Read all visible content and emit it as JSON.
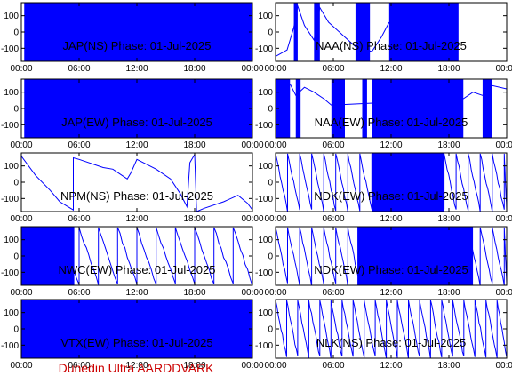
{
  "footer": "Dunedin Ultra AARDDVARK",
  "colors": {
    "trace": "#0000ff",
    "axis": "#000000",
    "footer": "#cc0000",
    "background": "#ffffff"
  },
  "chart_data": [
    {
      "type": "line",
      "title": "JAP(NS) Phase: 01-Jul-2025",
      "x_ticks": [
        "00:00",
        "06:00",
        "12:00",
        "18:00",
        "00:00"
      ],
      "y_ticks": [
        "100",
        "0",
        "-100"
      ],
      "ylim": [
        -180,
        180
      ],
      "xlim": [
        0,
        24
      ],
      "x_unit": "hours",
      "pattern": "dense",
      "dense_segments": [
        [
          0.3,
          24
        ]
      ]
    },
    {
      "type": "line",
      "title": "NAA(NS) Phase: 01-Jul-2025",
      "x_ticks": [
        "00:00",
        "06:00",
        "12:00",
        "18:00",
        "00:00"
      ],
      "y_ticks": [
        "100",
        "0",
        "-100"
      ],
      "ylim": [
        -180,
        180
      ],
      "xlim": [
        0,
        24
      ],
      "x_unit": "hours",
      "pattern": "mixed",
      "dense_segments": [
        [
          1.9,
          2.3
        ],
        [
          4.0,
          4.6
        ],
        [
          8.3,
          9.8
        ],
        [
          11.8,
          19.0
        ]
      ],
      "trend": [
        [
          0,
          -150
        ],
        [
          1.2,
          -110
        ],
        [
          1.9,
          30
        ],
        [
          2.3,
          160
        ],
        [
          3.0,
          40
        ],
        [
          4.0,
          -50
        ],
        [
          4.6,
          150
        ],
        [
          5.5,
          60
        ],
        [
          7.0,
          -20
        ],
        [
          8.3,
          -90
        ],
        [
          10.0,
          -120
        ],
        [
          11.0,
          -30
        ],
        [
          11.8,
          60
        ]
      ]
    },
    {
      "type": "line",
      "title": "JAP(EW) Phase: 01-Jul-2025",
      "x_ticks": [
        "00:00",
        "06:00",
        "12:00",
        "18:00",
        "00:00"
      ],
      "y_ticks": [
        "100",
        "0",
        "-100"
      ],
      "ylim": [
        -180,
        180
      ],
      "xlim": [
        0,
        24
      ],
      "x_unit": "hours",
      "pattern": "dense",
      "dense_segments": [
        [
          0.3,
          24
        ]
      ]
    },
    {
      "type": "line",
      "title": "NAA(EW) Phase: 01-Jul-2025",
      "x_ticks": [
        "00:00",
        "06:00",
        "12:00",
        "18:00",
        "00:00"
      ],
      "y_ticks": [
        "100",
        "0",
        "-100"
      ],
      "ylim": [
        -180,
        180
      ],
      "xlim": [
        0,
        24
      ],
      "x_unit": "hours",
      "pattern": "mixed",
      "dense_segments": [
        [
          0,
          1.5
        ],
        [
          2.1,
          2.6
        ],
        [
          5.8,
          7.2
        ],
        [
          9.0,
          9.5
        ],
        [
          10.0,
          19.5
        ],
        [
          21.5,
          22.5
        ]
      ],
      "trend": [
        [
          1.5,
          150
        ],
        [
          2.1,
          80
        ],
        [
          3.0,
          130
        ],
        [
          4.0,
          100
        ],
        [
          5.0,
          60
        ],
        [
          5.8,
          20
        ],
        [
          19.5,
          60
        ],
        [
          20.5,
          100
        ],
        [
          21.5,
          80
        ],
        [
          22.5,
          140
        ],
        [
          24,
          120
        ]
      ]
    },
    {
      "type": "line",
      "title": "NPM(NS) Phase: 01-Jul-2025",
      "x_ticks": [
        "00:00",
        "06:00",
        "12:00",
        "18:00",
        "00:00"
      ],
      "y_ticks": [
        "100",
        "0",
        "-100"
      ],
      "ylim": [
        -180,
        180
      ],
      "xlim": [
        0,
        24
      ],
      "x_unit": "hours",
      "pattern": "trend",
      "trend": [
        [
          0,
          160
        ],
        [
          1.5,
          40
        ],
        [
          3.0,
          -50
        ],
        [
          4.0,
          -120
        ],
        [
          5.4,
          -170
        ],
        [
          5.4,
          150
        ],
        [
          6.0,
          140
        ],
        [
          8.5,
          90
        ],
        [
          9.5,
          80
        ],
        [
          10.5,
          40
        ],
        [
          11.0,
          20
        ],
        [
          11.4,
          60
        ],
        [
          12.0,
          140
        ],
        [
          13.0,
          110
        ],
        [
          14.0,
          80
        ],
        [
          15.5,
          20
        ],
        [
          16.5,
          -70
        ],
        [
          17.2,
          -150
        ],
        [
          17.5,
          120
        ],
        [
          18.0,
          170
        ],
        [
          18.2,
          -180
        ],
        [
          19.0,
          -160
        ],
        [
          21.0,
          -120
        ],
        [
          22.5,
          -80
        ],
        [
          23.5,
          -130
        ],
        [
          24,
          -170
        ]
      ]
    },
    {
      "type": "line",
      "title": "NDK(EW) Phase: 01-Jul-2025",
      "x_ticks": [
        "00:00",
        "06:00",
        "12:00",
        "18:00",
        "00:00"
      ],
      "y_ticks": [
        "100",
        "0",
        "-100"
      ],
      "ylim": [
        -180,
        180
      ],
      "xlim": [
        0,
        24
      ],
      "x_unit": "hours",
      "pattern": "sawtooth",
      "period_h": 1.25,
      "dense_segments": [
        [
          10.0,
          17.5
        ]
      ]
    },
    {
      "type": "line",
      "title": "NWC(EW) Phase: 01-Jul-2025",
      "x_ticks": [
        "00:00",
        "06:00",
        "12:00",
        "18:00",
        "00:00"
      ],
      "y_ticks": [
        "100",
        "0",
        "-100"
      ],
      "ylim": [
        -180,
        180
      ],
      "xlim": [
        0,
        24
      ],
      "x_unit": "hours",
      "pattern": "sawtooth",
      "period_h": 2.0,
      "dense_segments": [
        [
          0,
          5.5
        ]
      ]
    },
    {
      "type": "line",
      "title": "NDK(EW) Phase: 01-Jul-2025",
      "x_ticks": [
        "00:00",
        "06:00",
        "12:00",
        "18:00",
        "00:00"
      ],
      "y_ticks": [
        "100",
        "0",
        "-100"
      ],
      "ylim": [
        -180,
        180
      ],
      "xlim": [
        0,
        24
      ],
      "x_unit": "hours",
      "pattern": "sawtooth",
      "period_h": 1.25,
      "dense_segments": [
        [
          8.5,
          20.5
        ]
      ]
    },
    {
      "type": "line",
      "title": "VTX(EW) Phase: 01-Jul-2025",
      "x_ticks": [
        "00:00",
        "06:00",
        "12:00",
        "18:00",
        "00:00"
      ],
      "y_ticks": [
        "100",
        "0",
        "-100"
      ],
      "ylim": [
        -180,
        180
      ],
      "xlim": [
        0,
        24
      ],
      "x_unit": "hours",
      "pattern": "dense",
      "dense_segments": [
        [
          0,
          24
        ]
      ]
    },
    {
      "type": "line",
      "title": "NLK(NS) Phase: 01-Jul-2025",
      "x_ticks": [
        "00:00",
        "06:00",
        "12:00",
        "18:00",
        "00:00"
      ],
      "y_ticks": [
        "100",
        "0",
        "-100"
      ],
      "ylim": [
        -180,
        180
      ],
      "xlim": [
        0,
        24
      ],
      "x_unit": "hours",
      "pattern": "sawtooth",
      "period_h": 1.15,
      "dense_segments": []
    }
  ]
}
